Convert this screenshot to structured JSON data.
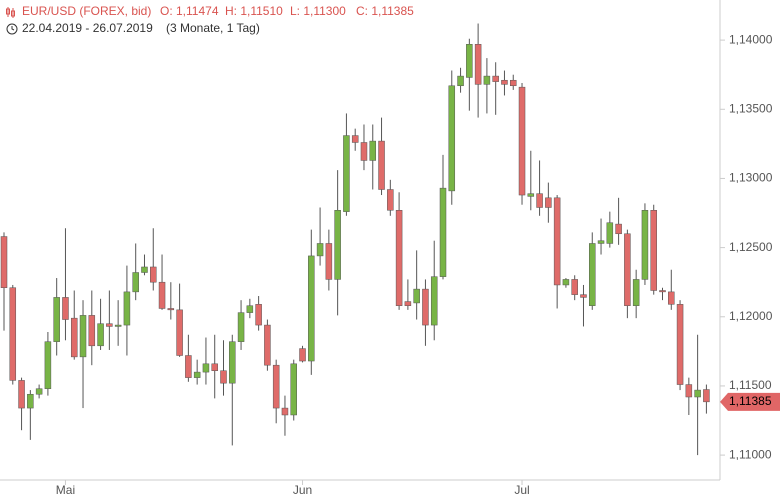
{
  "chart_data": {
    "type": "candlestick",
    "title": "EUR/USD (FOREX, bid)",
    "ohlc_header": {
      "open": "O: 1,11474",
      "high": "H: 1,11510",
      "low": "L: 1,11300",
      "close": "C: 1,11385"
    },
    "period": "22.04.2019 - 26.07.2019",
    "period_note": "(3 Monate, 1 Tag)",
    "up_color": "#78b446",
    "down_color": "#df6b69",
    "categories": [
      null,
      null,
      null,
      null,
      null,
      null,
      null,
      "Mai",
      null,
      null,
      null,
      null,
      null,
      null,
      null,
      null,
      null,
      null,
      null,
      null,
      null,
      null,
      null,
      null,
      null,
      null,
      null,
      null,
      null,
      null,
      null,
      null,
      null,
      null,
      "Jun",
      null,
      null,
      null,
      null,
      null,
      null,
      null,
      null,
      null,
      null,
      null,
      null,
      null,
      null,
      null,
      null,
      null,
      null,
      null,
      null,
      null,
      null,
      null,
      null,
      "Jul",
      null,
      null,
      null,
      null,
      null,
      null,
      null,
      null,
      null,
      null,
      null,
      null,
      null,
      null,
      null,
      null,
      null,
      null,
      null,
      null,
      null
    ],
    "open": [
      1.1258,
      1.1221,
      1.1154,
      1.1134,
      1.1144,
      1.1148,
      1.1182,
      1.1214,
      1.1199,
      1.1171,
      1.1201,
      1.1179,
      1.1195,
      1.1193,
      1.1194,
      1.1218,
      1.1232,
      1.1236,
      1.1225,
      1.1206,
      1.1205,
      1.1172,
      1.1156,
      1.116,
      1.1166,
      1.1161,
      1.1152,
      1.1182,
      1.1203,
      1.1209,
      1.1194,
      1.1165,
      1.1134,
      1.1129,
      1.1177,
      1.1168,
      1.1244,
      1.1253,
      1.1227,
      1.1276,
      1.1331,
      1.1326,
      1.1313,
      1.1327,
      1.1292,
      1.1277,
      1.1211,
      1.121,
      1.122,
      1.1194,
      1.1229,
      1.1291,
      1.1367,
      1.1373,
      1.1397,
      1.1368,
      1.1374,
      1.1371,
      1.1371,
      1.1366,
      1.1287,
      1.1289,
      1.1286,
      1.1286,
      1.1223,
      1.1227,
      1.1216,
      1.1208,
      1.1253,
      1.1253,
      1.1267,
      1.126,
      1.1208,
      1.1227,
      1.1277,
      1.1219,
      1.1218,
      1.1209,
      1.1151,
      1.1142,
      1.11474
    ],
    "high": [
      1.1261,
      1.1223,
      1.1156,
      1.1147,
      1.1151,
      1.1189,
      1.1228,
      1.1264,
      1.1219,
      1.1212,
      1.1219,
      1.1213,
      1.1219,
      1.1212,
      1.1237,
      1.1253,
      1.1245,
      1.1264,
      1.1245,
      1.1225,
      1.1224,
      1.1187,
      1.1169,
      1.1185,
      1.1187,
      1.1183,
      1.1187,
      1.1212,
      1.1213,
      1.1215,
      1.1198,
      1.1169,
      1.1143,
      1.1169,
      1.1179,
      1.1263,
      1.1279,
      1.1263,
      1.1306,
      1.1347,
      1.1336,
      1.1339,
      1.1339,
      1.1344,
      1.1299,
      1.129,
      1.1227,
      1.1248,
      1.1227,
      1.1255,
      1.1317,
      1.1378,
      1.138,
      1.1401,
      1.1412,
      1.1387,
      1.1384,
      1.1378,
      1.1375,
      1.1369,
      1.132,
      1.1313,
      1.1297,
      1.1288,
      1.1228,
      1.123,
      1.1223,
      1.1261,
      1.1271,
      1.1276,
      1.1286,
      1.1263,
      1.1234,
      1.1282,
      1.1281,
      1.1221,
      1.1234,
      1.1212,
      1.1156,
      1.1187,
      1.1151
    ],
    "low": [
      1.119,
      1.1151,
      1.1118,
      1.1111,
      1.1141,
      1.1143,
      1.1172,
      1.1183,
      1.1169,
      1.1134,
      1.1165,
      1.1176,
      1.1176,
      1.1179,
      1.1172,
      1.1212,
      1.123,
      1.1219,
      1.1205,
      1.1198,
      1.1171,
      1.1153,
      1.1151,
      1.1151,
      1.1141,
      1.1143,
      1.1107,
      1.1176,
      1.1199,
      1.119,
      1.1161,
      1.1123,
      1.1114,
      1.1125,
      1.1167,
      1.1158,
      1.1237,
      1.1219,
      1.1201,
      1.1273,
      1.132,
      1.1306,
      1.1292,
      1.1288,
      1.1273,
      1.1205,
      1.1205,
      1.1198,
      1.1179,
      1.1183,
      1.1227,
      1.1281,
      1.1362,
      1.1349,
      1.1344,
      1.1347,
      1.1346,
      1.136,
      1.1364,
      1.1281,
      1.1277,
      1.1273,
      1.1268,
      1.1206,
      1.1221,
      1.1212,
      1.1193,
      1.1205,
      1.1245,
      1.125,
      1.1252,
      1.1199,
      1.1199,
      1.1223,
      1.1216,
      1.1212,
      1.1205,
      1.1147,
      1.1129,
      1.11,
      1.113
    ],
    "close": [
      1.1221,
      1.1154,
      1.1134,
      1.1144,
      1.1148,
      1.1182,
      1.1214,
      1.1198,
      1.1171,
      1.1201,
      1.1179,
      1.1195,
      1.1193,
      1.1194,
      1.1218,
      1.1232,
      1.1236,
      1.1225,
      1.1206,
      1.1205,
      1.1172,
      1.1156,
      1.116,
      1.1166,
      1.1161,
      1.1152,
      1.1182,
      1.1203,
      1.1208,
      1.1194,
      1.1165,
      1.1134,
      1.1129,
      1.1166,
      1.1168,
      1.1244,
      1.1253,
      1.1227,
      1.1277,
      1.1331,
      1.1326,
      1.1313,
      1.1327,
      1.1292,
      1.1277,
      1.1208,
      1.1208,
      1.122,
      1.1194,
      1.1229,
      1.1293,
      1.1367,
      1.1374,
      1.1397,
      1.1368,
      1.1374,
      1.137,
      1.1368,
      1.1367,
      1.1288,
      1.1289,
      1.1279,
      1.1279,
      1.1223,
      1.1227,
      1.1216,
      1.1214,
      1.1253,
      1.1255,
      1.1268,
      1.126,
      1.1208,
      1.1227,
      1.1277,
      1.1219,
      1.1218,
      1.1209,
      1.1151,
      1.1142,
      1.1147,
      1.11385
    ],
    "last_price": {
      "value": 1.11385,
      "label": "1,11385"
    },
    "ylim": [
      1.1082,
      1.1429
    ],
    "yticks": [
      {
        "value": 1.11,
        "label": "1,11000"
      },
      {
        "value": 1.115,
        "label": "1,11500"
      },
      {
        "value": 1.12,
        "label": "1,12000"
      },
      {
        "value": 1.125,
        "label": "1,12500"
      },
      {
        "value": 1.13,
        "label": "1,13000"
      },
      {
        "value": 1.135,
        "label": "1,13500"
      },
      {
        "value": 1.14,
        "label": "1,14000"
      }
    ]
  }
}
